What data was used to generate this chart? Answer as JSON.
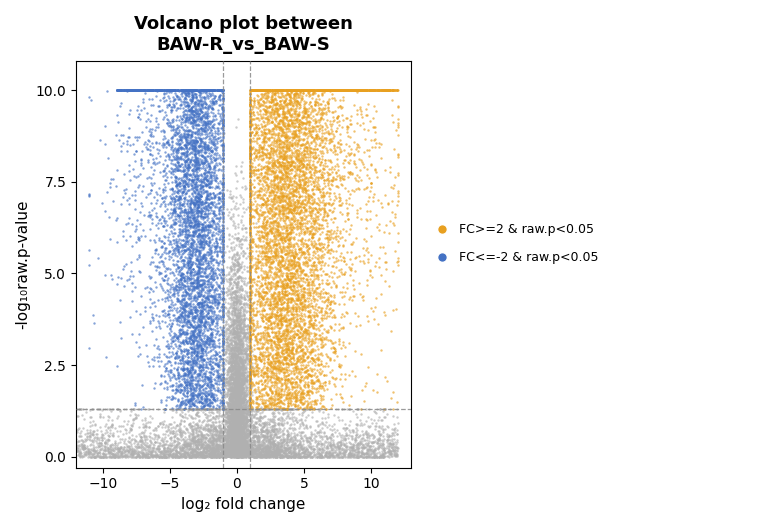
{
  "title": "Volcano plot between\nBAW-R_vs_BAW-S",
  "xlabel": "log₂ fold change",
  "ylabel": "-log₁₀raw.p-value",
  "xlim": [
    -12,
    13
  ],
  "ylim": [
    -0.3,
    10.8
  ],
  "x_ticks": [
    -10,
    -5,
    0,
    5,
    10
  ],
  "y_ticks": [
    0.0,
    2.5,
    5.0,
    7.5,
    10.0
  ],
  "fc_threshold": 1.0,
  "pval_threshold": 1.301,
  "color_up": "#E8A020",
  "color_down": "#4472C4",
  "color_ns": "#B0B0B0",
  "vline_x": [
    -1,
    1
  ],
  "hline_y": 1.301,
  "legend_label_up": "FC>=2 & raw.p<0.05",
  "legend_label_down": "FC<=-2 & raw.p<0.05",
  "title_fontsize": 13,
  "label_fontsize": 11,
  "tick_fontsize": 10,
  "point_size": 3,
  "point_alpha": 0.65,
  "seed": 42
}
